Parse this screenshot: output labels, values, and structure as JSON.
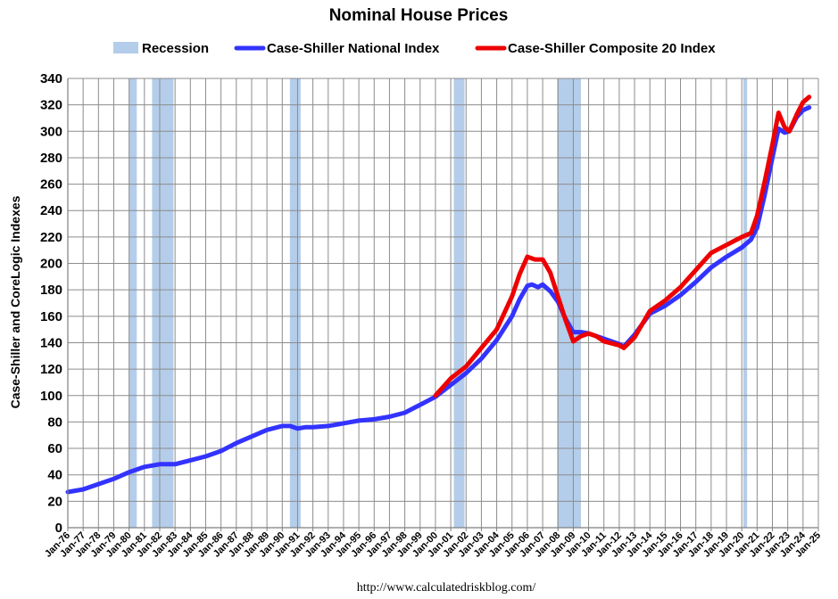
{
  "chart_data": {
    "type": "line",
    "title": "Nominal House Prices",
    "ylabel": "Case-Shiller and CoreLogic Indexes",
    "xlabel": "",
    "source": "http://www.calculatedriskblog.com/",
    "ylim": [
      0,
      340
    ],
    "yticks": [
      0,
      20,
      40,
      60,
      80,
      100,
      120,
      140,
      160,
      180,
      200,
      220,
      240,
      260,
      280,
      300,
      320,
      340
    ],
    "xlim": [
      1976.0,
      2025.0
    ],
    "xtick_labels": [
      "Jan-76",
      "Jan-77",
      "Jan-78",
      "Jan-79",
      "Jan-80",
      "Jan-81",
      "Jan-82",
      "Jan-83",
      "Jan-84",
      "Jan-85",
      "Jan-86",
      "Jan-87",
      "Jan-88",
      "Jan-89",
      "Jan-90",
      "Jan-91",
      "Jan-92",
      "Jan-93",
      "Jan-94",
      "Jan-95",
      "Jan-96",
      "Jan-97",
      "Jan-98",
      "Jan-99",
      "Jan-00",
      "Jan-01",
      "Jan-02",
      "Jan-03",
      "Jan-04",
      "Jan-05",
      "Jan-06",
      "Jan-07",
      "Jan-08",
      "Jan-09",
      "Jan-10",
      "Jan-11",
      "Jan-12",
      "Jan-13",
      "Jan-14",
      "Jan-15",
      "Jan-16",
      "Jan-17",
      "Jan-18",
      "Jan-19",
      "Jan-20",
      "Jan-21",
      "Jan-22",
      "Jan-23",
      "Jan-24",
      "Jan-25"
    ],
    "grid": true,
    "legend_position": "top",
    "legend": [
      {
        "label": "Recession",
        "color": "#b4cdea",
        "kind": "band"
      },
      {
        "label": "Case-Shiller National Index",
        "color": "#3333ff",
        "kind": "line"
      },
      {
        "label": "Case-Shiller Composite 20 Index",
        "color": "#ee0000",
        "kind": "line"
      }
    ],
    "recessions": [
      [
        1980.0,
        1980.5
      ],
      [
        1981.5,
        1982.9
      ],
      [
        1990.5,
        1991.2
      ],
      [
        2001.2,
        2001.9
      ],
      [
        2007.95,
        2009.5
      ],
      [
        2020.1,
        2020.35
      ]
    ],
    "series": [
      {
        "name": "Case-Shiller National Index",
        "color": "#3333ff",
        "x": [
          1976.0,
          1977.0,
          1978.0,
          1979.0,
          1980.0,
          1981.0,
          1982.0,
          1983.0,
          1984.0,
          1985.0,
          1986.0,
          1987.0,
          1988.0,
          1989.0,
          1990.0,
          1990.5,
          1991.0,
          1991.5,
          1992.0,
          1993.0,
          1994.0,
          1995.0,
          1996.0,
          1997.0,
          1998.0,
          1999.0,
          2000.0,
          2001.0,
          2002.0,
          2003.0,
          2004.0,
          2005.0,
          2005.5,
          2006.0,
          2006.3,
          2006.7,
          2007.0,
          2007.5,
          2008.0,
          2008.5,
          2009.0,
          2009.5,
          2010.0,
          2011.0,
          2012.0,
          2012.3,
          2013.0,
          2014.0,
          2015.0,
          2016.0,
          2017.0,
          2018.0,
          2019.0,
          2020.0,
          2020.6,
          2021.0,
          2021.5,
          2022.0,
          2022.4,
          2022.8,
          2023.1,
          2023.6,
          2024.0,
          2024.4
        ],
        "y": [
          27,
          29,
          33,
          37,
          42,
          46,
          48,
          48,
          51,
          54,
          58,
          64,
          69,
          74,
          77,
          77,
          75,
          76,
          76,
          77,
          79,
          81,
          82,
          84,
          87,
          93,
          99,
          108,
          117,
          128,
          142,
          160,
          173,
          183,
          184,
          182,
          184,
          179,
          171,
          158,
          148,
          148,
          147,
          143,
          139,
          137,
          146,
          162,
          168,
          176,
          186,
          197,
          205,
          212,
          218,
          227,
          252,
          280,
          302,
          299,
          300,
          311,
          316,
          318
        ]
      },
      {
        "name": "Case-Shiller Composite 20 Index",
        "color": "#ee0000",
        "x": [
          2000.0,
          2001.0,
          2002.0,
          2003.0,
          2004.0,
          2005.0,
          2005.5,
          2006.0,
          2006.5,
          2007.0,
          2007.5,
          2008.0,
          2008.5,
          2009.0,
          2009.5,
          2010.0,
          2010.5,
          2011.0,
          2012.0,
          2012.3,
          2013.0,
          2014.0,
          2015.0,
          2016.0,
          2017.0,
          2018.0,
          2019.0,
          2020.0,
          2020.6,
          2021.0,
          2021.5,
          2022.0,
          2022.4,
          2022.8,
          2023.1,
          2023.6,
          2024.0,
          2024.4
        ],
        "y": [
          100,
          113,
          122,
          136,
          150,
          175,
          192,
          205,
          203,
          203,
          193,
          175,
          157,
          141,
          145,
          147,
          145,
          141,
          138,
          136,
          144,
          164,
          172,
          182,
          195,
          208,
          214,
          220,
          223,
          236,
          262,
          290,
          314,
          303,
          300,
          313,
          322,
          326
        ]
      }
    ]
  }
}
